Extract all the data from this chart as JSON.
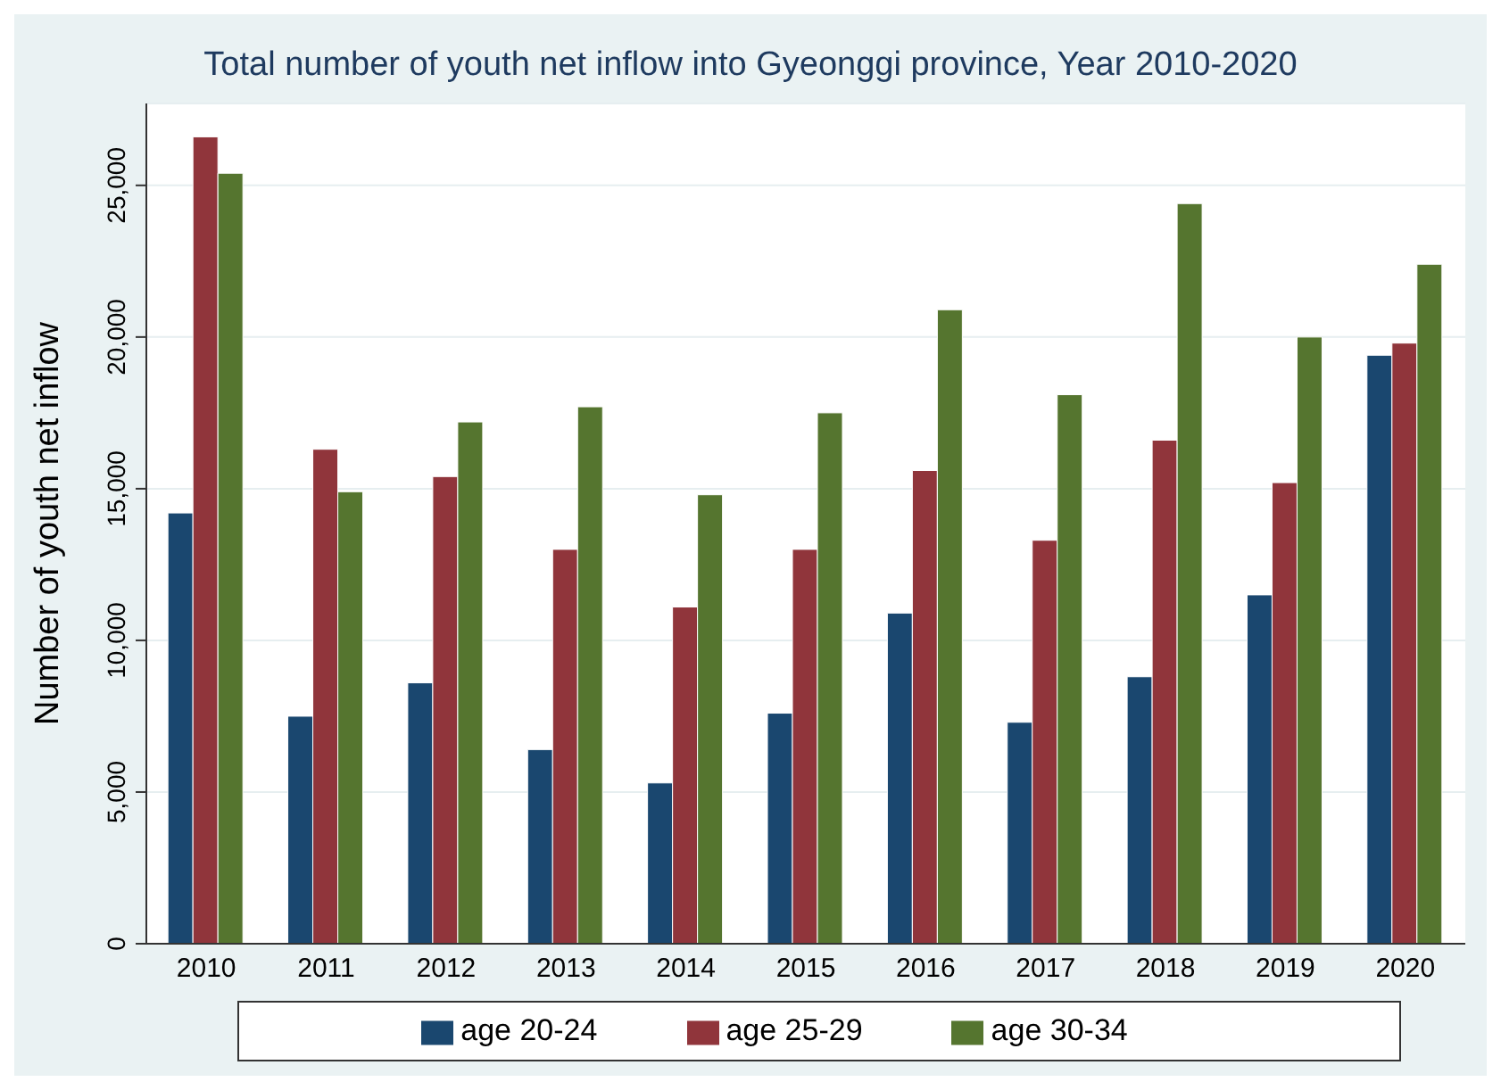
{
  "chart_data": {
    "type": "bar",
    "title": "Total number of youth net inflow into Gyeonggi province, Year 2010-2020",
    "ylabel": "Number of youth net inflow",
    "categories": [
      "2010",
      "2011",
      "2012",
      "2013",
      "2014",
      "2015",
      "2016",
      "2017",
      "2018",
      "2019",
      "2020"
    ],
    "series": [
      {
        "name": "age 20-24",
        "color": "#1a476f",
        "values": [
          14200,
          7500,
          8600,
          6400,
          5300,
          7600,
          10900,
          7300,
          8800,
          11500,
          19400
        ]
      },
      {
        "name": "age 25-29",
        "color": "#90353b",
        "values": [
          26600,
          16300,
          15400,
          13000,
          11100,
          13000,
          15600,
          13300,
          16600,
          15200,
          19800
        ]
      },
      {
        "name": "age 30-34",
        "color": "#55752f",
        "values": [
          25400,
          14900,
          17200,
          17700,
          14800,
          17500,
          20900,
          18100,
          24400,
          20000,
          22400
        ]
      }
    ],
    "ylim": [
      0,
      27700
    ],
    "yticks": [
      0,
      {
        "value": 5000,
        "label": "5,000"
      },
      {
        "value": 10000,
        "label": "10,000"
      },
      {
        "value": 15000,
        "label": "15,000"
      },
      {
        "value": 20000,
        "label": "20,000"
      },
      {
        "value": 25000,
        "label": "25,000"
      }
    ],
    "grid": "y",
    "legend": "bottom"
  }
}
